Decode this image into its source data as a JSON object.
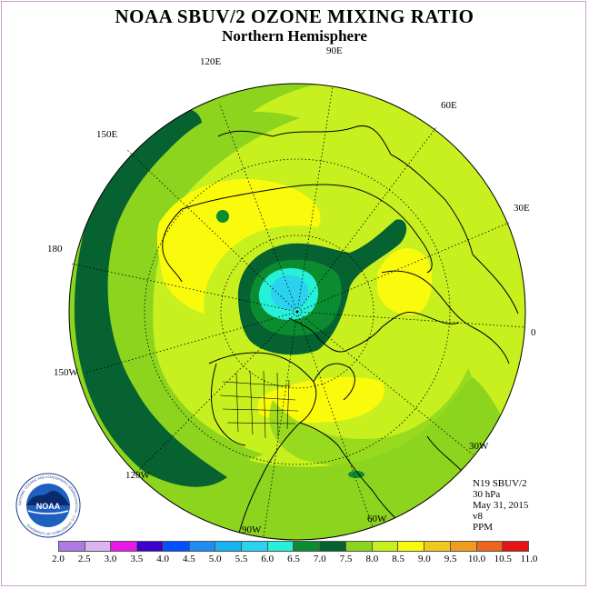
{
  "title": "NOAA SBUV/2 OZONE MIXING RATIO",
  "subtitle": "Northern Hemisphere",
  "longitude_labels": {
    "lon_120e": "120E",
    "lon_90e": "90E",
    "lon_60e": "60E",
    "lon_30e": "30E",
    "lon_0": "0",
    "lon_30w": "30W",
    "lon_60w": "60W",
    "lon_90w": "90W",
    "lon_120w": "120W",
    "lon_150w": "150W",
    "lon_180": "180",
    "lon_150e": "150E"
  },
  "info": {
    "satellite": "N19 SBUV/2",
    "level": "30 hPa",
    "date": "May 31, 2015",
    "version": "v8",
    "units": "PPM"
  },
  "colorbar": {
    "ticks": [
      "2.0",
      "2.5",
      "3.0",
      "3.5",
      "4.0",
      "4.5",
      "5.0",
      "5.5",
      "6.0",
      "6.5",
      "7.0",
      "7.5",
      "8.0",
      "8.5",
      "9.0",
      "9.5",
      "10.0",
      "10.5",
      "11.0"
    ],
    "colors": [
      "#b07ae6",
      "#dcb4f0",
      "#e619e6",
      "#3c00c8",
      "#0050ff",
      "#1e8cf0",
      "#19b4f0",
      "#2ad2f0",
      "#26f0d8",
      "#0c8c30",
      "#066230",
      "#8cd41e",
      "#c8f01e",
      "#fafa0c",
      "#f0c81e",
      "#f09c1e",
      "#f0641e",
      "#e61414",
      "#8c5028"
    ]
  },
  "logo": {
    "text": "NOAA",
    "ring_text": "NATIONAL OCEANIC AND ATMOSPHERIC ADMINISTRATION · U.S. DEPARTMENT OF COMMERCE"
  }
}
